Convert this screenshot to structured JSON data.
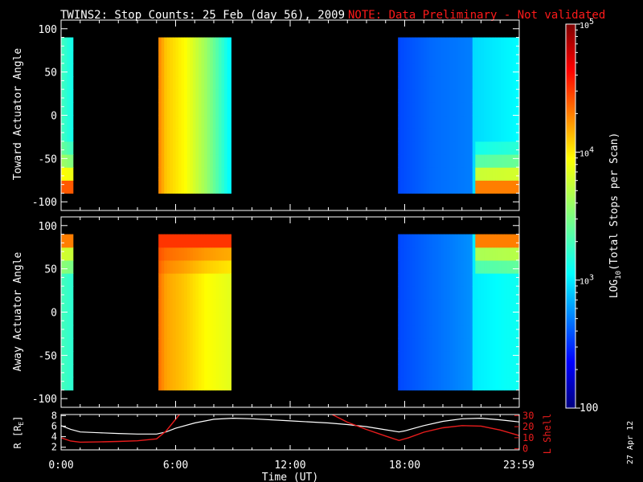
{
  "title": "TWINS2: Stop Counts: 25 Feb (day  56), 2009",
  "note": "NOTE: Data Preliminary - Not validated",
  "date_stamp": "27 Apr 12",
  "colors": {
    "note": "#ff1a1a",
    "orbit_r": "#ffffff",
    "orbit_l": "#e81c1c",
    "background": "#000000"
  },
  "chart_data": [
    {
      "type": "heatmap",
      "name": "toward",
      "ylabel": "Toward Actuator Angle",
      "xlim": [
        0,
        24
      ],
      "ylim": [
        -110,
        110
      ],
      "y_ticks": [
        "100",
        "50",
        "0",
        "-50",
        "-100"
      ],
      "y_tick_values": [
        100,
        50,
        0,
        -50,
        -100
      ],
      "y_extent": [
        -90,
        90
      ],
      "data_blocks_hours": [
        [
          0.0,
          0.62
        ],
        [
          5.1,
          8.9
        ],
        [
          17.65,
          24.0
        ]
      ],
      "level_log10_by_block": [
        [
          {
            "t": 0.0,
            "v": 3.3
          },
          {
            "t": 0.62,
            "v": 3.1
          }
        ],
        [
          {
            "t": 5.1,
            "v": 4.3
          },
          {
            "t": 5.5,
            "v": 4.1
          },
          {
            "t": 6.5,
            "v": 3.95
          },
          {
            "t": 7.6,
            "v": 3.6
          },
          {
            "t": 8.5,
            "v": 3.2
          },
          {
            "t": 8.9,
            "v": 3.0
          }
        ],
        [
          {
            "t": 17.65,
            "v": 2.55
          },
          {
            "t": 19.5,
            "v": 2.65
          },
          {
            "t": 21.5,
            "v": 2.7
          },
          {
            "t": 21.6,
            "v": 2.95
          },
          {
            "t": 24.0,
            "v": 3.05
          }
        ]
      ],
      "low_angle_enhancement": [
        {
          "t_start": 0.0,
          "t_end": 0.62,
          "peak_log10": 4.4
        },
        {
          "t_start": 21.6,
          "t_end": 24.0,
          "peak_log10": 4.3
        }
      ]
    },
    {
      "type": "heatmap",
      "name": "away",
      "ylabel": "Away Actuator Angle",
      "xlim": [
        0,
        24
      ],
      "ylim": [
        -110,
        110
      ],
      "y_ticks": [
        "100",
        "50",
        "0",
        "-50",
        "-100"
      ],
      "y_tick_values": [
        100,
        50,
        0,
        -50,
        -100
      ],
      "y_extent": [
        -90,
        90
      ],
      "data_blocks_hours": [
        [
          0.0,
          0.62
        ],
        [
          5.1,
          8.9
        ],
        [
          17.65,
          24.0
        ]
      ],
      "level_log10_by_block": [
        [
          {
            "t": 0.0,
            "v": 3.3
          },
          {
            "t": 0.62,
            "v": 3.2
          }
        ],
        [
          {
            "t": 5.1,
            "v": 4.35
          },
          {
            "t": 5.5,
            "v": 4.2
          },
          {
            "t": 6.5,
            "v": 4.1
          },
          {
            "t": 7.6,
            "v": 3.95
          },
          {
            "t": 8.9,
            "v": 3.85
          }
        ],
        [
          {
            "t": 17.65,
            "v": 2.55
          },
          {
            "t": 19.5,
            "v": 2.65
          },
          {
            "t": 21.5,
            "v": 2.75
          },
          {
            "t": 21.6,
            "v": 3.0
          },
          {
            "t": 24.0,
            "v": 3.1
          }
        ]
      ],
      "high_angle_enhancement": [
        {
          "t_start": 0.0,
          "t_end": 0.62,
          "peak_log10": 4.3
        },
        {
          "t_start": 5.1,
          "t_end": 8.9,
          "peak_log10": 4.5
        },
        {
          "t_start": 21.6,
          "t_end": 24.0,
          "peak_log10": 4.3
        }
      ]
    },
    {
      "type": "line",
      "name": "orbit",
      "xlabel": "Time (UT)",
      "x_ticks": [
        "0:00",
        "6:00",
        "12:00",
        "18:00",
        "23:59"
      ],
      "x_tick_values": [
        0,
        6,
        12,
        18,
        23.98
      ],
      "xlim": [
        0,
        24
      ],
      "ylabel_left": "R [R",
      "ylabel_left_sub": "E",
      "ylabel_left_end": "]",
      "ylim_left": [
        1.5,
        8.2
      ],
      "y_ticks_left": [
        "8",
        "6",
        "4",
        "2"
      ],
      "y_tick_values_left": [
        8,
        6,
        4,
        2
      ],
      "ylabel_right": "L Shell",
      "ylim_right": [
        -1,
        31
      ],
      "y_ticks_right": [
        "30",
        "20",
        "10",
        "0"
      ],
      "y_tick_values_right": [
        30,
        20,
        10,
        0
      ],
      "series": [
        {
          "axis": "left",
          "x": [
            0.0,
            0.5,
            1.0,
            2.0,
            3.0,
            4.0,
            5.0,
            5.5,
            6.0,
            7.0,
            8.0,
            9.0,
            10.0,
            12.0,
            14.0,
            15.0,
            16.0,
            17.0,
            17.7,
            18.0,
            19.0,
            20.0,
            21.0,
            22.0,
            23.0,
            23.98
          ],
          "y": [
            6.1,
            5.4,
            4.9,
            4.75,
            4.6,
            4.5,
            4.5,
            4.9,
            5.6,
            6.6,
            7.3,
            7.5,
            7.4,
            7.0,
            6.6,
            6.3,
            5.9,
            5.3,
            4.9,
            5.1,
            6.1,
            6.9,
            7.4,
            7.5,
            7.2,
            6.8
          ]
        },
        {
          "axis": "right",
          "segments": [
            {
              "x": [
                0.0,
                0.5,
                1.0,
                2.0,
                3.0,
                4.0,
                5.0,
                5.5,
                6.2
              ],
              "y": [
                10,
                7,
                6,
                6.2,
                6.6,
                7.2,
                9,
                16,
                31
              ]
            },
            {
              "x": [
                14.2,
                15.0,
                16.0,
                17.0,
                17.7,
                18.2,
                19.0,
                20.0,
                21.0,
                22.0,
                23.0,
                23.98
              ],
              "y": [
                31,
                24,
                17.5,
                11.5,
                7.5,
                10,
                15,
                19,
                21,
                20.5,
                17,
                12
              ]
            }
          ]
        }
      ]
    }
  ],
  "colorbar": {
    "label_prefix": "LOG",
    "label_sub": "10",
    "label_suffix": "(Total Stops per Scan)",
    "scale": "log",
    "range_log10": [
      2,
      5
    ],
    "ticks": [
      {
        "base": "10",
        "exp": "5",
        "value": 5
      },
      {
        "base": "10",
        "exp": "4",
        "value": 4
      },
      {
        "base": "10",
        "exp": "3",
        "value": 3
      },
      {
        "base": "100",
        "exp": "",
        "value": 2
      }
    ]
  }
}
